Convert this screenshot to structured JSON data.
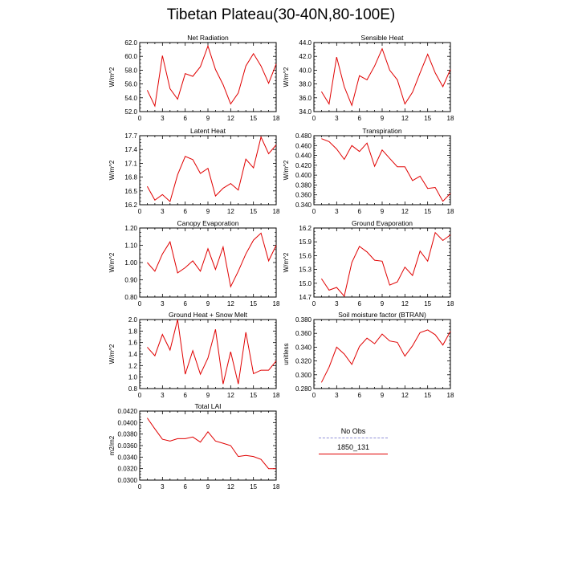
{
  "title": "Tibetan Plateau(30-40N,80-100E)",
  "legend": {
    "obs_label": "No Obs",
    "obs_color": "#8f8fd8",
    "model_label": "1850_131",
    "model_color": "#e00000"
  },
  "chart_data": [
    {
      "type": "line",
      "title": "Net Radiation",
      "ylabel": "W/m^2",
      "xlim": [
        0,
        18
      ],
      "xticks": [
        "0",
        "3",
        "6",
        "9",
        "12",
        "15",
        "18"
      ],
      "ylim": [
        52.0,
        62.0
      ],
      "yticks": [
        "52.0",
        "54.0",
        "56.0",
        "58.0",
        "60.0",
        "62.0"
      ],
      "series": [
        {
          "values": [
            [
              1,
              55.1
            ],
            [
              2,
              52.8
            ],
            [
              3,
              60.1
            ],
            [
              4,
              55.3
            ],
            [
              5,
              53.8
            ],
            [
              6,
              57.5
            ],
            [
              7,
              57.1
            ],
            [
              8,
              58.5
            ],
            [
              9,
              61.5
            ],
            [
              10,
              58.1
            ],
            [
              11,
              55.9
            ],
            [
              12,
              53.1
            ],
            [
              13,
              54.7
            ],
            [
              14,
              58.6
            ],
            [
              15,
              60.4
            ],
            [
              16,
              58.6
            ],
            [
              17,
              56.1
            ],
            [
              18,
              58.9
            ]
          ]
        }
      ]
    },
    {
      "type": "line",
      "title": "Sensible Heat",
      "ylabel": "W/m^2",
      "xlim": [
        0,
        18
      ],
      "xticks": [
        "0",
        "3",
        "6",
        "9",
        "12",
        "15",
        "18"
      ],
      "ylim": [
        34.0,
        44.0
      ],
      "yticks": [
        "34.0",
        "36.0",
        "38.0",
        "40.0",
        "42.0",
        "44.0"
      ],
      "series": [
        {
          "values": [
            [
              1,
              36.9
            ],
            [
              2,
              35.1
            ],
            [
              3,
              41.9
            ],
            [
              4,
              37.6
            ],
            [
              5,
              34.9
            ],
            [
              6,
              39.2
            ],
            [
              7,
              38.6
            ],
            [
              8,
              40.6
            ],
            [
              9,
              43.1
            ],
            [
              10,
              40.0
            ],
            [
              11,
              38.6
            ],
            [
              12,
              35.1
            ],
            [
              13,
              36.8
            ],
            [
              14,
              39.6
            ],
            [
              15,
              42.3
            ],
            [
              16,
              39.6
            ],
            [
              17,
              37.6
            ],
            [
              18,
              40.1
            ]
          ]
        }
      ]
    },
    {
      "type": "line",
      "title": "Latent Heat",
      "ylabel": "W/m^2",
      "xlim": [
        0,
        18
      ],
      "xticks": [
        "0",
        "3",
        "6",
        "9",
        "12",
        "15",
        "18"
      ],
      "ylim": [
        16.2,
        17.7
      ],
      "yticks": [
        "16.2",
        "16.5",
        "16.8",
        "17.1",
        "17.4",
        "17.7"
      ],
      "series": [
        {
          "values": [
            [
              1,
              16.6
            ],
            [
              2,
              16.3
            ],
            [
              3,
              16.42
            ],
            [
              4,
              16.27
            ],
            [
              5,
              16.85
            ],
            [
              6,
              17.25
            ],
            [
              7,
              17.18
            ],
            [
              8,
              16.88
            ],
            [
              9,
              16.99
            ],
            [
              10,
              16.39
            ],
            [
              11,
              16.56
            ],
            [
              12,
              16.66
            ],
            [
              13,
              16.52
            ],
            [
              14,
              17.19
            ],
            [
              15,
              17.0
            ],
            [
              16,
              17.67
            ],
            [
              17,
              17.31
            ],
            [
              18,
              17.5
            ]
          ]
        }
      ]
    },
    {
      "type": "line",
      "title": "Transpiration",
      "ylabel": "W/m^2",
      "xlim": [
        0,
        18
      ],
      "xticks": [
        "0",
        "3",
        "6",
        "9",
        "12",
        "15",
        "18"
      ],
      "ylim": [
        0.34,
        0.48
      ],
      "yticks": [
        "0.340",
        "0.360",
        "0.380",
        "0.400",
        "0.420",
        "0.440",
        "0.460",
        "0.480"
      ],
      "series": [
        {
          "values": [
            [
              1,
              0.474
            ],
            [
              2,
              0.468
            ],
            [
              3,
              0.453
            ],
            [
              4,
              0.432
            ],
            [
              5,
              0.46
            ],
            [
              6,
              0.448
            ],
            [
              7,
              0.465
            ],
            [
              8,
              0.418
            ],
            [
              9,
              0.451
            ],
            [
              10,
              0.434
            ],
            [
              11,
              0.417
            ],
            [
              12,
              0.417
            ],
            [
              13,
              0.389
            ],
            [
              14,
              0.398
            ],
            [
              15,
              0.373
            ],
            [
              16,
              0.375
            ],
            [
              17,
              0.347
            ],
            [
              18,
              0.363
            ]
          ]
        }
      ]
    },
    {
      "type": "line",
      "title": "Canopy Evaporation",
      "ylabel": "W/m^2",
      "xlim": [
        0,
        18
      ],
      "xticks": [
        "0",
        "3",
        "6",
        "9",
        "12",
        "15",
        "18"
      ],
      "ylim": [
        0.8,
        1.2
      ],
      "yticks": [
        "0.80",
        "0.90",
        "1.00",
        "1.10",
        "1.20"
      ],
      "series": [
        {
          "values": [
            [
              1,
              1.0
            ],
            [
              2,
              0.95
            ],
            [
              3,
              1.05
            ],
            [
              4,
              1.12
            ],
            [
              5,
              0.94
            ],
            [
              6,
              0.97
            ],
            [
              7,
              1.01
            ],
            [
              8,
              0.95
            ],
            [
              9,
              1.08
            ],
            [
              10,
              0.96
            ],
            [
              11,
              1.09
            ],
            [
              12,
              0.86
            ],
            [
              13,
              0.95
            ],
            [
              14,
              1.05
            ],
            [
              15,
              1.13
            ],
            [
              16,
              1.17
            ],
            [
              17,
              1.01
            ],
            [
              18,
              1.1
            ]
          ]
        }
      ]
    },
    {
      "type": "line",
      "title": "Ground Evaporation",
      "ylabel": "W/m^2",
      "xlim": [
        0,
        18
      ],
      "xticks": [
        "0",
        "3",
        "6",
        "9",
        "12",
        "15",
        "18"
      ],
      "ylim": [
        14.7,
        16.2
      ],
      "yticks": [
        "14.7",
        "15.0",
        "15.3",
        "15.6",
        "15.9",
        "16.2"
      ],
      "series": [
        {
          "values": [
            [
              1,
              15.1
            ],
            [
              2,
              14.85
            ],
            [
              3,
              14.91
            ],
            [
              4,
              14.72
            ],
            [
              5,
              15.45
            ],
            [
              6,
              15.8
            ],
            [
              7,
              15.68
            ],
            [
              8,
              15.5
            ],
            [
              9,
              15.48
            ],
            [
              10,
              14.96
            ],
            [
              11,
              15.03
            ],
            [
              12,
              15.35
            ],
            [
              13,
              15.17
            ],
            [
              14,
              15.7
            ],
            [
              15,
              15.48
            ],
            [
              16,
              16.1
            ],
            [
              17,
              15.93
            ],
            [
              18,
              16.05
            ]
          ]
        }
      ]
    },
    {
      "type": "line",
      "title": "Ground Heat + Snow Melt",
      "ylabel": "W/m^2",
      "xlim": [
        0,
        18
      ],
      "xticks": [
        "0",
        "3",
        "6",
        "9",
        "12",
        "15",
        "18"
      ],
      "ylim": [
        0.8,
        2.0
      ],
      "yticks": [
        "0.8",
        "1.0",
        "1.2",
        "1.4",
        "1.6",
        "1.8",
        "2.0"
      ],
      "series": [
        {
          "values": [
            [
              1,
              1.52
            ],
            [
              2,
              1.37
            ],
            [
              3,
              1.74
            ],
            [
              4,
              1.47
            ],
            [
              5,
              2.0
            ],
            [
              6,
              1.05
            ],
            [
              7,
              1.46
            ],
            [
              8,
              1.05
            ],
            [
              9,
              1.33
            ],
            [
              10,
              1.83
            ],
            [
              11,
              0.88
            ],
            [
              12,
              1.44
            ],
            [
              13,
              0.88
            ],
            [
              14,
              1.78
            ],
            [
              15,
              1.06
            ],
            [
              16,
              1.12
            ],
            [
              17,
              1.12
            ],
            [
              18,
              1.28
            ]
          ]
        }
      ]
    },
    {
      "type": "line",
      "title": "Soil moisture factor (BTRAN)",
      "ylabel": "unitless",
      "xlim": [
        0,
        18
      ],
      "xticks": [
        "0",
        "3",
        "6",
        "9",
        "12",
        "15",
        "18"
      ],
      "ylim": [
        0.28,
        0.38
      ],
      "yticks": [
        "0.280",
        "0.300",
        "0.320",
        "0.340",
        "0.360",
        "0.380"
      ],
      "series": [
        {
          "values": [
            [
              1,
              0.289
            ],
            [
              2,
              0.311
            ],
            [
              3,
              0.34
            ],
            [
              4,
              0.33
            ],
            [
              5,
              0.315
            ],
            [
              6,
              0.341
            ],
            [
              7,
              0.353
            ],
            [
              8,
              0.345
            ],
            [
              9,
              0.359
            ],
            [
              10,
              0.349
            ],
            [
              11,
              0.347
            ],
            [
              12,
              0.327
            ],
            [
              13,
              0.342
            ],
            [
              14,
              0.361
            ],
            [
              15,
              0.365
            ],
            [
              16,
              0.358
            ],
            [
              17,
              0.343
            ],
            [
              18,
              0.363
            ]
          ]
        }
      ]
    },
    {
      "type": "line",
      "title": "Total LAI",
      "ylabel": "m2/m2",
      "xlim": [
        0,
        18
      ],
      "xticks": [
        "0",
        "3",
        "6",
        "9",
        "12",
        "15",
        "18"
      ],
      "ylim": [
        0.03,
        0.042
      ],
      "yticks": [
        "0.0300",
        "0.0320",
        "0.0340",
        "0.0360",
        "0.0380",
        "0.0400",
        "0.0420"
      ],
      "series": [
        {
          "values": [
            [
              1,
              0.0408
            ],
            [
              2,
              0.0389
            ],
            [
              3,
              0.0371
            ],
            [
              4,
              0.0368
            ],
            [
              5,
              0.0372
            ],
            [
              6,
              0.0372
            ],
            [
              7,
              0.0375
            ],
            [
              8,
              0.0366
            ],
            [
              9,
              0.0384
            ],
            [
              10,
              0.0368
            ],
            [
              11,
              0.0364
            ],
            [
              12,
              0.036
            ],
            [
              13,
              0.0341
            ],
            [
              14,
              0.0343
            ],
            [
              15,
              0.0341
            ],
            [
              16,
              0.0336
            ],
            [
              17,
              0.032
            ],
            [
              18,
              0.032
            ]
          ]
        }
      ]
    }
  ]
}
